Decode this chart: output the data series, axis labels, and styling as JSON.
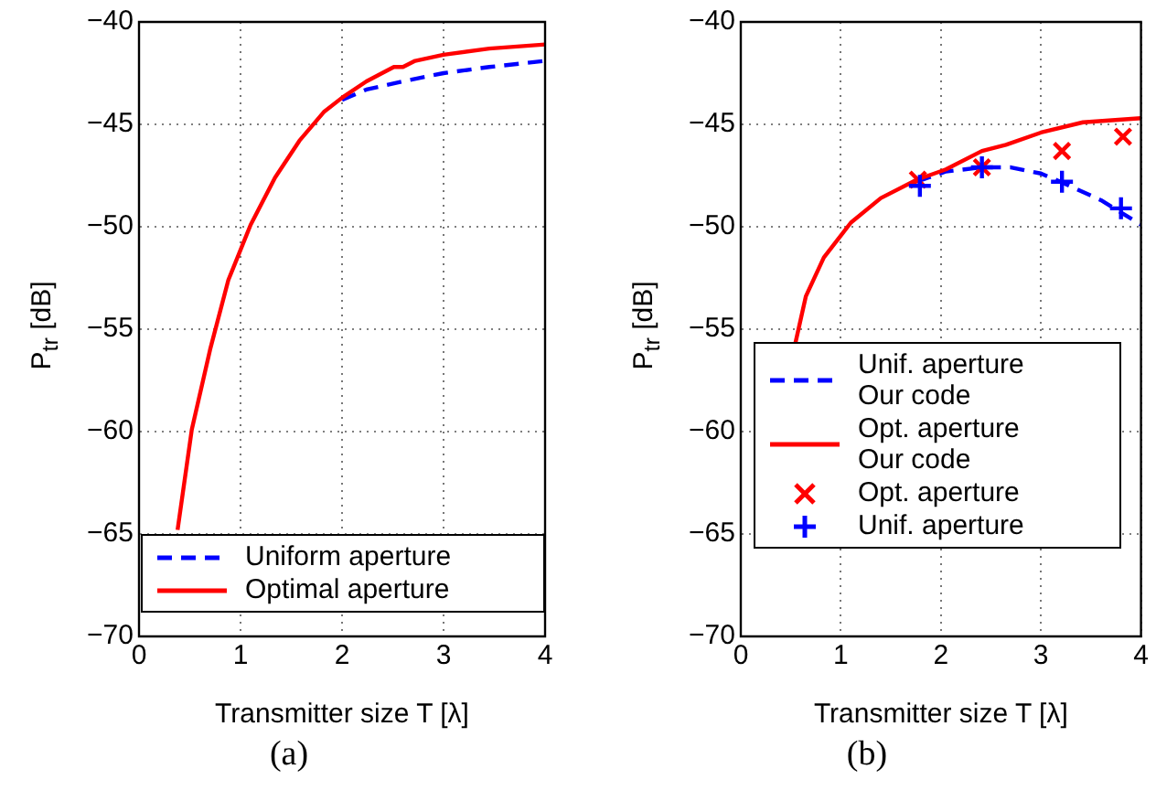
{
  "chart_data": [
    {
      "type": "line",
      "xlabel": "Transmitter size T [λ]",
      "ylabel": "P$_{tr}$ [dB]",
      "xlim": [
        0,
        4
      ],
      "xticks": [
        0,
        1,
        2,
        3,
        4
      ],
      "ylim": [
        -70,
        -40
      ],
      "yticks": [
        -70,
        -65,
        -60,
        -55,
        -50,
        -45,
        -40
      ],
      "grid": true,
      "legend": "bottom left",
      "marker": "none",
      "annotations": [
        "(a)"
      ],
      "series": [
        {
          "name": "Uniform aperture",
          "color": "#0000ff",
          "line_style": "dashed",
          "x": [
            2.0,
            2.24,
            2.6,
            3.0,
            3.45,
            4.0
          ],
          "values": [
            -43.8,
            -43.3,
            -42.9,
            -42.5,
            -42.2,
            -41.9
          ]
        },
        {
          "name": "Optimal aperture",
          "color": "#ff0000",
          "line_style": "solid",
          "x": [
            0.38,
            0.52,
            0.7,
            0.88,
            1.1,
            1.34,
            1.58,
            1.82,
            2.0,
            2.24,
            2.51,
            2.6,
            2.72,
            3.0,
            3.45,
            4.0
          ],
          "values": [
            -64.8,
            -59.9,
            -56.0,
            -52.6,
            -49.9,
            -47.6,
            -45.8,
            -44.4,
            -43.7,
            -42.9,
            -42.2,
            -42.2,
            -41.9,
            -41.6,
            -41.3,
            -41.1
          ]
        }
      ]
    },
    {
      "type": "line",
      "xlabel": "Transmitter size T [λ]",
      "ylabel": "P$_{tr}$ [dB]",
      "xlim": [
        0,
        4
      ],
      "xticks": [
        0,
        1,
        2,
        3,
        4
      ],
      "ylim": [
        -70,
        -40
      ],
      "yticks": [
        -70,
        -65,
        -60,
        -55,
        -50,
        -45,
        -40
      ],
      "grid": true,
      "legend": "bottom left",
      "annotations": [
        "(b)"
      ],
      "series": [
        {
          "name": "Unif. aperture\nOur code",
          "color": "#0000ff",
          "line_style": "dashed",
          "marker": "none",
          "x": [
            1.76,
            2.05,
            2.41,
            2.7,
            3.0,
            3.24,
            3.6,
            4.0
          ],
          "values": [
            -47.8,
            -47.3,
            -47.1,
            -47.1,
            -47.4,
            -47.9,
            -48.7,
            -49.9
          ]
        },
        {
          "name": "Opt. aperture\nOur code",
          "color": "#ff0000",
          "line_style": "solid",
          "marker": "none",
          "x": [
            0.54,
            0.65,
            0.83,
            1.1,
            1.4,
            1.76,
            2.05,
            2.41,
            2.65,
            3.0,
            3.42,
            4.0
          ],
          "values": [
            -55.8,
            -53.4,
            -51.5,
            -49.8,
            -48.6,
            -47.7,
            -47.2,
            -46.3,
            -46.0,
            -45.4,
            -44.9,
            -44.7
          ]
        },
        {
          "name": "Opt. aperture",
          "type": "scatter",
          "color": "#ff0000",
          "marker": "cross",
          "x": [
            1.77,
            2.41,
            3.21,
            3.82
          ],
          "values": [
            -47.7,
            -47.1,
            -46.3,
            -45.6
          ]
        },
        {
          "name": "Unif. aperture",
          "type": "scatter",
          "color": "#0000ff",
          "marker": "plus",
          "x": [
            1.79,
            2.41,
            3.21,
            3.8
          ],
          "values": [
            -48.0,
            -47.1,
            -47.8,
            -49.1
          ]
        }
      ]
    }
  ]
}
